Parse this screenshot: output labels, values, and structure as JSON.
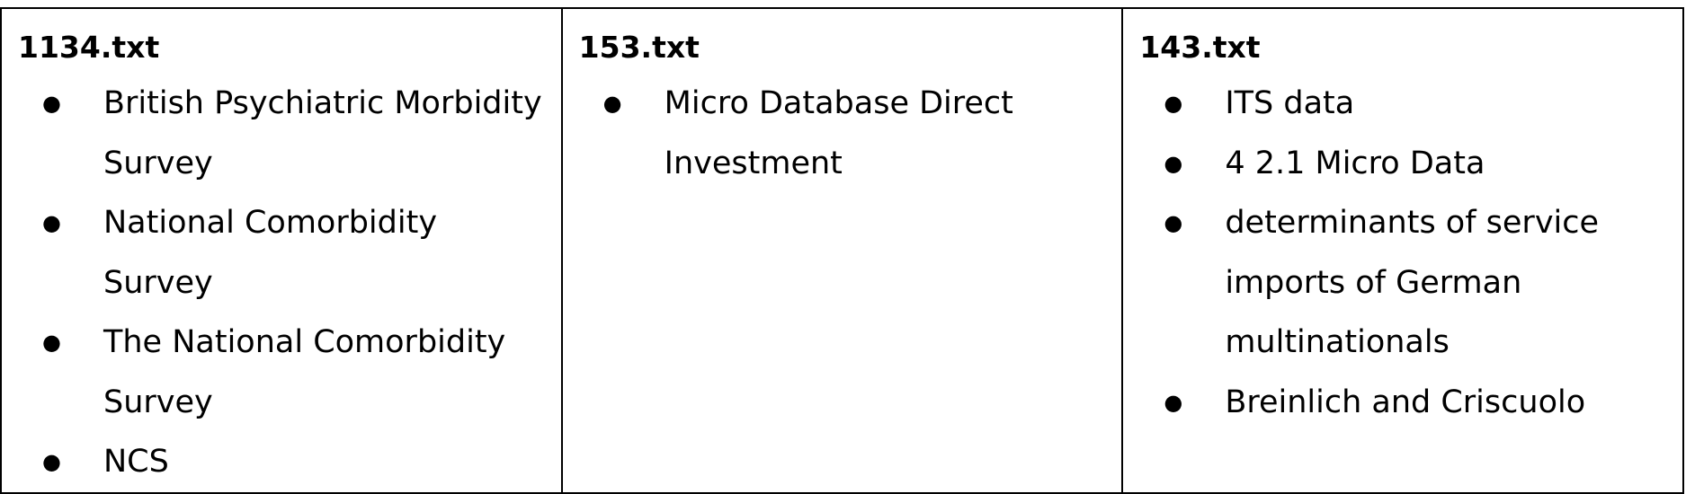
{
  "columns": [
    {
      "title": "1134.txt",
      "items": [
        "British Psychiatric Morbidity Survey",
        "National Comorbidity Survey",
        "The National Comorbidity Survey",
        "NCS"
      ]
    },
    {
      "title": "153.txt",
      "items": [
        "Micro Database Direct Investment"
      ]
    },
    {
      "title": "143.txt",
      "items": [
        "ITS data",
        "4 2.1 Micro Data",
        "determinants of service imports of German multinationals",
        "Breinlich and Criscuolo"
      ]
    }
  ],
  "bullet_glyph": "●"
}
